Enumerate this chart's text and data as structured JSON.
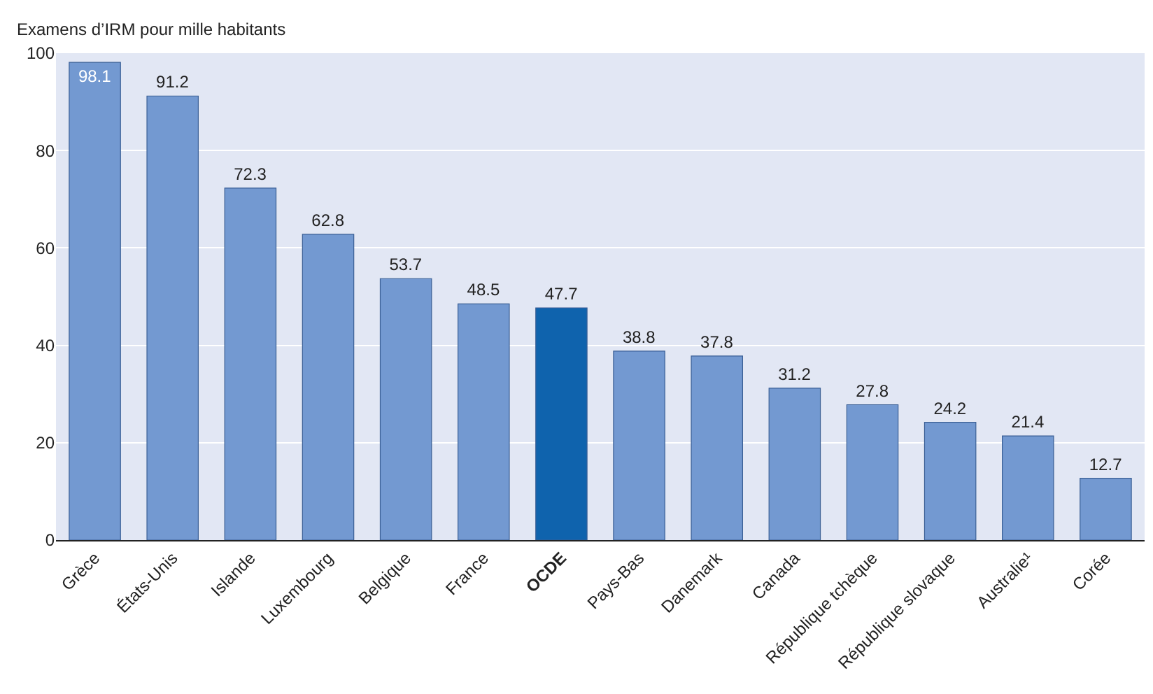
{
  "chart_data": {
    "type": "bar",
    "ylabel": "Examens d’IRM pour mille habitants",
    "categories": [
      "Grèce",
      "États-Unis",
      "Islande",
      "Luxembourg",
      "Belgique",
      "France",
      "OCDE",
      "Pays-Bas",
      "Danemark",
      "Canada",
      "République tchèque",
      "République slovaque",
      "Australie¹",
      "Corée"
    ],
    "values": [
      98.1,
      91.2,
      72.3,
      62.8,
      53.7,
      48.5,
      47.7,
      38.8,
      37.8,
      31.2,
      27.8,
      24.2,
      21.4,
      12.7
    ],
    "colors": [
      "#7399d1",
      "#7399d1",
      "#7399d1",
      "#7399d1",
      "#7399d1",
      "#7399d1",
      "#0f63ad",
      "#7399d1",
      "#7399d1",
      "#7399d1",
      "#7399d1",
      "#7399d1",
      "#7399d1",
      "#7399d1"
    ],
    "ylim": [
      0,
      100
    ],
    "yticks": [
      0,
      20,
      40,
      60,
      80,
      100
    ],
    "grid": "y",
    "data_labels": true
  }
}
